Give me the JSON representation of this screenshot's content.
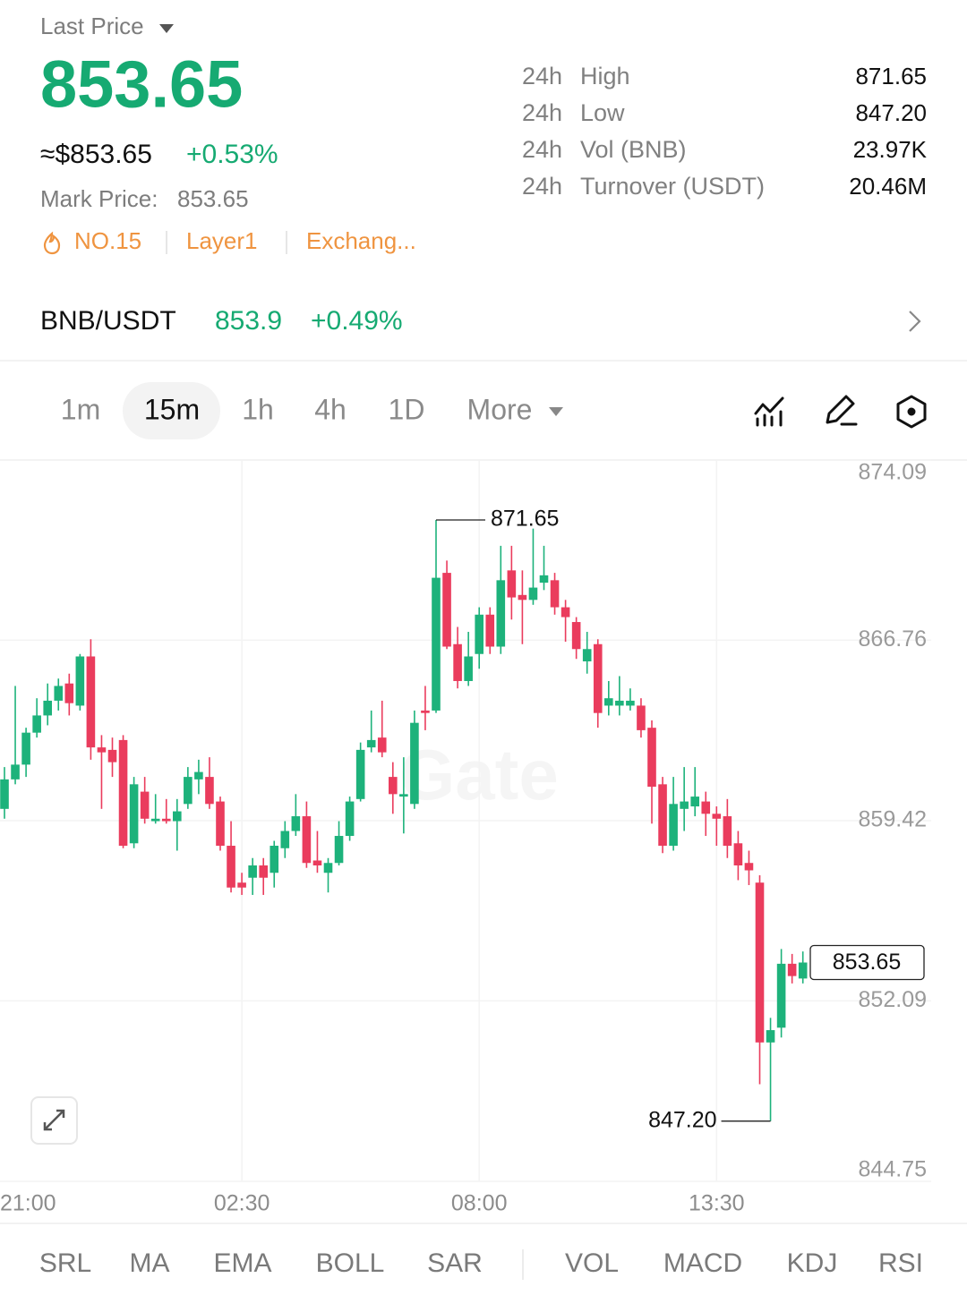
{
  "header": {
    "last_price_label": "Last Price",
    "last_price": "853.65",
    "usd_price": "≈$853.65",
    "change": "+0.53%",
    "mark_price_label": "Mark Price:",
    "mark_price": "853.65",
    "tags": [
      "NO.15",
      "Layer1",
      "Exchang..."
    ]
  },
  "stats": [
    {
      "period": "24h",
      "label": "High",
      "value": "871.65"
    },
    {
      "period": "24h",
      "label": "Low",
      "value": "847.20"
    },
    {
      "period": "24h",
      "label": "Vol (BNB)",
      "value": "23.97K"
    },
    {
      "period": "24h",
      "label": "Turnover (USDT)",
      "value": "20.46M"
    }
  ],
  "pair": {
    "name": "BNB/USDT",
    "price": "853.9",
    "change": "+0.49%"
  },
  "intervals": [
    "1m",
    "15m",
    "1h",
    "4h",
    "1D",
    "More"
  ],
  "chart_data": {
    "type": "candlestick",
    "watermark": "Gate",
    "open": [
      859.9,
      861.1,
      861.7,
      863.0,
      863.7,
      864.3,
      865.0,
      864.1,
      866.1,
      862.4,
      862.3,
      862.7,
      858.5,
      860.6,
      859.4,
      859.5,
      859.4,
      860.1,
      861.1,
      861.2,
      860.2,
      858.4,
      856.9,
      857.1,
      857.6,
      857.3,
      858.3,
      859.0,
      859.6,
      857.8,
      857.3,
      857.7,
      858.8,
      860.3,
      862.4,
      862.8,
      861.2,
      860.4,
      860.1,
      863.9,
      863.9,
      869.5,
      866.6,
      865.1,
      866.2,
      867.8,
      866.5,
      869.6,
      868.6,
      868.4,
      869.1,
      869.2,
      868.1,
      867.5,
      865.9,
      866.6,
      864.1,
      864.1,
      864.1,
      864.1,
      863.2,
      860.9,
      858.4,
      859.9,
      860.0,
      860.2,
      859.7,
      859.6,
      858.5,
      857.7,
      856.9,
      850.4,
      851.0,
      853.6,
      853.0
    ],
    "high": [
      861.6,
      864.9,
      863.2,
      864.4,
      865.0,
      865.2,
      865.4,
      866.2,
      866.8,
      862.9,
      862.8,
      862.9,
      861.2,
      861.2,
      860.5,
      860.3,
      860.3,
      861.6,
      861.9,
      862.0,
      860.4,
      859.4,
      857.3,
      857.9,
      857.9,
      858.6,
      859.4,
      860.5,
      860.2,
      859.0,
      857.9,
      859.4,
      860.4,
      862.6,
      863.9,
      864.3,
      861.8,
      862.0,
      863.9,
      864.9,
      871.65,
      870.0,
      867.3,
      867.1,
      868.1,
      868.1,
      870.6,
      870.6,
      869.6,
      871.3,
      870.6,
      869.5,
      868.4,
      867.7,
      867.1,
      866.8,
      865.1,
      865.3,
      864.8,
      864.4,
      863.5,
      861.2,
      861.2,
      861.6,
      861.6,
      860.6,
      860.0,
      860.3,
      859.0,
      858.2,
      857.2,
      851.4,
      854.2,
      854.0,
      854.1
    ],
    "low": [
      859.5,
      860.9,
      861.2,
      862.8,
      863.3,
      863.9,
      863.7,
      863.9,
      861.9,
      859.9,
      861.2,
      858.3,
      858.3,
      859.3,
      859.3,
      859.3,
      858.2,
      859.9,
      860.5,
      859.9,
      858.2,
      856.5,
      856.4,
      856.4,
      856.4,
      856.7,
      857.9,
      858.8,
      857.5,
      857.3,
      856.5,
      857.6,
      858.6,
      860.2,
      862.2,
      862.0,
      859.7,
      858.9,
      859.9,
      863.1,
      863.8,
      866.4,
      864.8,
      864.9,
      865.6,
      866.2,
      866.2,
      867.6,
      866.6,
      868.2,
      868.8,
      867.8,
      866.7,
      866.0,
      865.4,
      863.2,
      863.7,
      863.7,
      863.9,
      862.8,
      859.3,
      858.1,
      858.2,
      859.0,
      859.6,
      858.8,
      858.4,
      857.9,
      857.0,
      856.8,
      848.7,
      847.2,
      850.6,
      852.8,
      852.8
    ],
    "close": [
      861.1,
      861.7,
      863.0,
      863.7,
      864.3,
      864.9,
      864.2,
      866.1,
      862.4,
      862.2,
      861.8,
      858.4,
      860.9,
      859.5,
      859.5,
      859.4,
      859.8,
      861.2,
      861.4,
      860.1,
      858.4,
      856.7,
      856.7,
      857.6,
      857.1,
      858.4,
      859.0,
      859.6,
      857.7,
      857.6,
      857.7,
      858.8,
      860.2,
      862.3,
      862.7,
      862.2,
      860.5,
      860.5,
      863.4,
      863.8,
      869.3,
      866.5,
      865.1,
      866.1,
      867.8,
      866.5,
      869.2,
      868.5,
      868.4,
      868.9,
      869.4,
      868.1,
      867.7,
      866.4,
      866.4,
      863.8,
      864.4,
      864.3,
      864.3,
      863.1,
      860.8,
      858.4,
      860.1,
      860.2,
      860.4,
      859.7,
      859.5,
      858.4,
      857.6,
      857.4,
      850.4,
      850.9,
      853.6,
      853.1,
      853.65
    ],
    "low_label": "847.20",
    "ylim": [
      844.75,
      874.09
    ],
    "yticks": [
      874.09,
      866.76,
      859.42,
      852.09,
      844.75
    ],
    "xticks": [
      "21:00",
      "02:30",
      "08:00",
      "13:30"
    ],
    "grid": true,
    "colors": {
      "up": "#1db27b",
      "down": "#ea3c5d"
    }
  },
  "indicators": [
    "SRL",
    "MA",
    "EMA",
    "BOLL",
    "SAR",
    "VOL",
    "MACD",
    "KDJ",
    "RSI"
  ]
}
